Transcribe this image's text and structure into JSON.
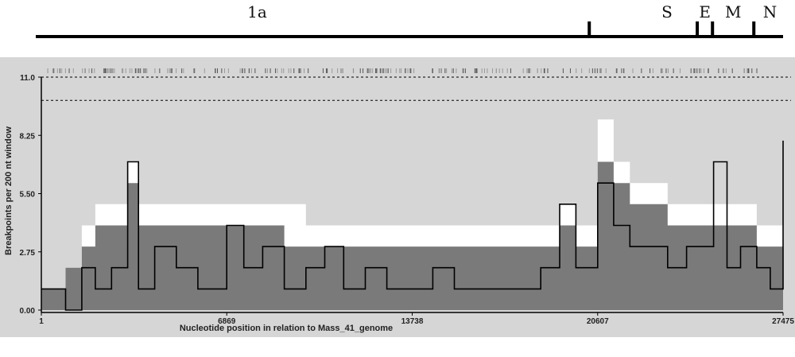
{
  "genome_map": {
    "genes": [
      {
        "label": "1a"
      },
      {
        "label": "S"
      },
      {
        "label": "E"
      },
      {
        "label": "M"
      },
      {
        "label": "N"
      }
    ],
    "boundaries_nt": [
      20350,
      24320,
      24880,
      26400
    ]
  },
  "chart_data": {
    "type": "line",
    "xlabel": "Nucleotide position in relation to Mass_41_genome",
    "ylabel": "Breakpoints per 200 nt window",
    "xlim": [
      1,
      27475
    ],
    "ylim": [
      0,
      11
    ],
    "x_ticks": [
      "1",
      "6869",
      "13738",
      "20607",
      "27475"
    ],
    "y_ticks": [
      "0.00",
      "2.75",
      "5.50",
      "8.25",
      "11.0"
    ],
    "threshold_lines": [
      11.0,
      9.9
    ],
    "colors": {
      "panel": "#d6d6d6",
      "light_band": "#ffffff",
      "mid_band": "#7a7a7a",
      "observed_line": "#000000"
    },
    "x": [
      1,
      900,
      1500,
      2000,
      2600,
      3200,
      3600,
      4200,
      5000,
      5800,
      6869,
      7500,
      8200,
      9000,
      9800,
      10500,
      11200,
      12000,
      12800,
      13738,
      14500,
      15300,
      16100,
      16900,
      17700,
      18500,
      19200,
      19800,
      20300,
      20607,
      21200,
      21800,
      22500,
      23200,
      23900,
      24400,
      24900,
      25400,
      25900,
      26500,
      27000,
      27475
    ],
    "series": [
      {
        "values": [
          1,
          2,
          4,
          5,
          5,
          7,
          5,
          5,
          5,
          5,
          5,
          5,
          5,
          5,
          4,
          4,
          4,
          4,
          4,
          4,
          4,
          4,
          4,
          4,
          4,
          4,
          5,
          4,
          4,
          9,
          7,
          6,
          6,
          5,
          5,
          5,
          5,
          5,
          5,
          4,
          4,
          8
        ]
      },
      {
        "values": [
          1,
          2,
          3,
          4,
          4,
          6,
          4,
          4,
          4,
          4,
          4,
          4,
          4,
          3,
          3,
          3,
          3,
          3,
          3,
          3,
          3,
          3,
          3,
          3,
          3,
          3,
          4,
          3,
          3,
          7,
          6,
          5,
          5,
          4,
          4,
          4,
          4,
          4,
          4,
          3,
          3,
          7
        ]
      },
      {
        "values": [
          1,
          0,
          2,
          1,
          2,
          7,
          1,
          3,
          2,
          1,
          4,
          2,
          3,
          1,
          2,
          3,
          1,
          2,
          1,
          1,
          2,
          1,
          1,
          1,
          1,
          2,
          5,
          2,
          2,
          6,
          4,
          3,
          3,
          2,
          3,
          3,
          7,
          2,
          3,
          2,
          1,
          8
        ]
      }
    ]
  }
}
